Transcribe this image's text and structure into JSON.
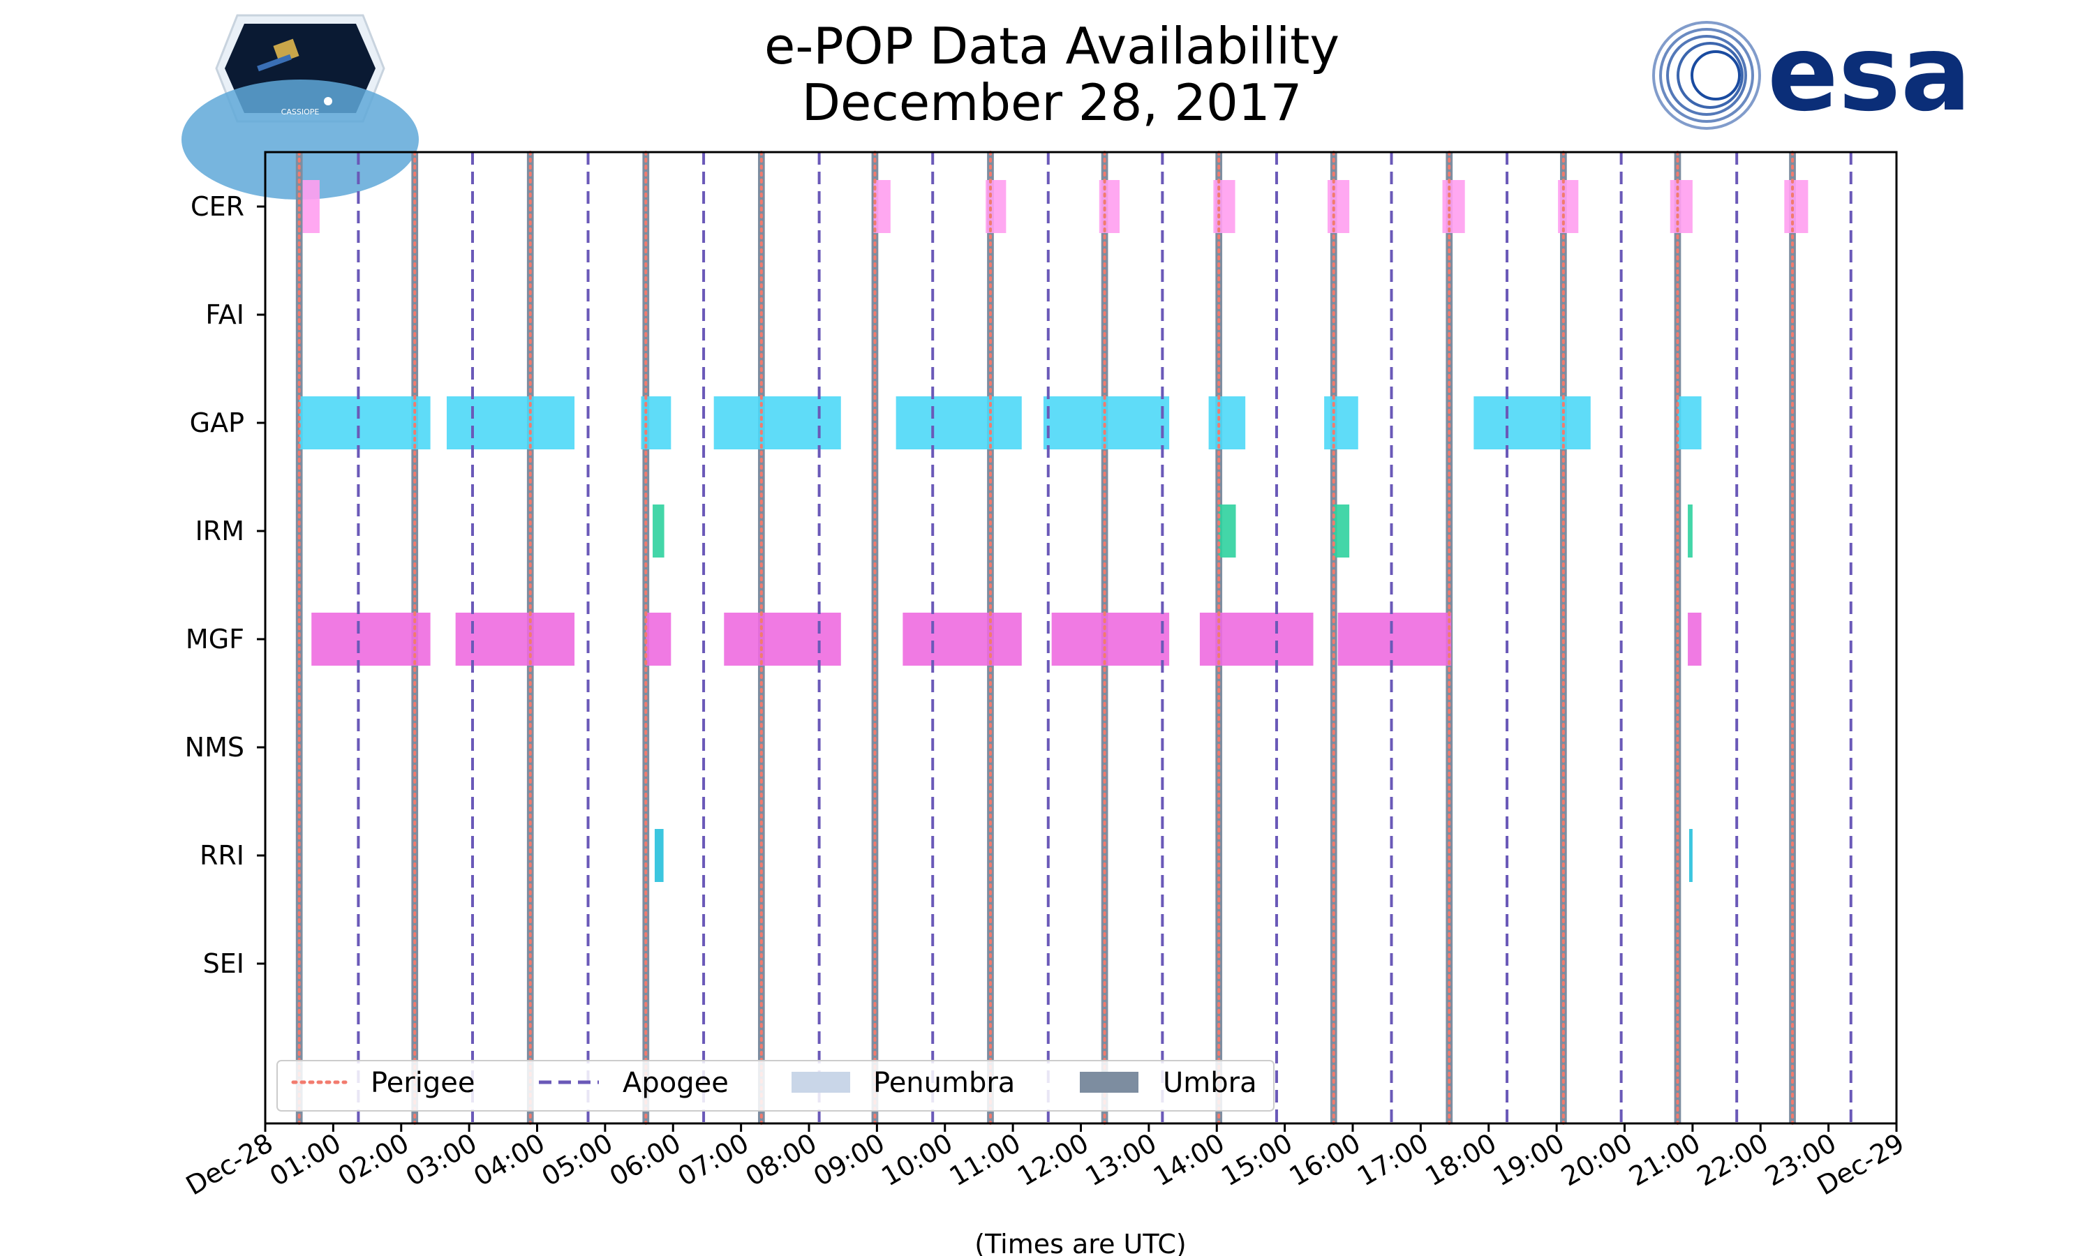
{
  "logos": {
    "left": "CASSIOPE",
    "right": "esa"
  },
  "chart_data": {
    "type": "gantt",
    "title": [
      "e-POP Data Availability",
      "December 28, 2017"
    ],
    "xlabel": "(Times are UTC)",
    "xlim_hours": [
      0,
      24
    ],
    "xticks": [
      {
        "h": 0,
        "label": "Dec-28"
      },
      {
        "h": 1,
        "label": "01:00"
      },
      {
        "h": 2,
        "label": "02:00"
      },
      {
        "h": 3,
        "label": "03:00"
      },
      {
        "h": 4,
        "label": "04:00"
      },
      {
        "h": 5,
        "label": "05:00"
      },
      {
        "h": 6,
        "label": "06:00"
      },
      {
        "h": 7,
        "label": "07:00"
      },
      {
        "h": 8,
        "label": "08:00"
      },
      {
        "h": 9,
        "label": "09:00"
      },
      {
        "h": 10,
        "label": "10:00"
      },
      {
        "h": 11,
        "label": "11:00"
      },
      {
        "h": 12,
        "label": "12:00"
      },
      {
        "h": 13,
        "label": "13:00"
      },
      {
        "h": 14,
        "label": "14:00"
      },
      {
        "h": 15,
        "label": "15:00"
      },
      {
        "h": 16,
        "label": "16:00"
      },
      {
        "h": 17,
        "label": "17:00"
      },
      {
        "h": 18,
        "label": "18:00"
      },
      {
        "h": 19,
        "label": "19:00"
      },
      {
        "h": 20,
        "label": "20:00"
      },
      {
        "h": 21,
        "label": "21:00"
      },
      {
        "h": 22,
        "label": "22:00"
      },
      {
        "h": 23,
        "label": "23:00"
      },
      {
        "h": 24,
        "label": "Dec-29"
      }
    ],
    "instruments": [
      "CER",
      "FAI",
      "GAP",
      "IRM",
      "MGF",
      "NMS",
      "RRI",
      "SEI"
    ],
    "series": [
      {
        "name": "CER",
        "color": "#ff9ef0",
        "intervals": [
          [
            0.55,
            0.8
          ],
          [
            8.95,
            9.2
          ],
          [
            10.6,
            10.9
          ],
          [
            12.27,
            12.57
          ],
          [
            13.95,
            14.27
          ],
          [
            15.63,
            15.95
          ],
          [
            17.32,
            17.65
          ],
          [
            19.02,
            19.32
          ],
          [
            20.67,
            21.0
          ],
          [
            22.35,
            22.7
          ]
        ]
      },
      {
        "name": "FAI",
        "color": "#ffd37a",
        "intervals": []
      },
      {
        "name": "GAP",
        "color": "#4ed8f7",
        "intervals": [
          [
            0.5,
            2.43
          ],
          [
            2.67,
            4.55
          ],
          [
            5.53,
            5.97
          ],
          [
            6.6,
            8.47
          ],
          [
            9.28,
            11.13
          ],
          [
            11.45,
            13.3
          ],
          [
            13.88,
            14.42
          ],
          [
            15.58,
            16.08
          ],
          [
            17.78,
            19.5
          ],
          [
            20.78,
            21.13
          ]
        ]
      },
      {
        "name": "IRM",
        "color": "#2fd19f",
        "intervals": [
          [
            5.7,
            5.87
          ],
          [
            14.03,
            14.28
          ],
          [
            15.72,
            15.95
          ],
          [
            20.93,
            21.0
          ]
        ]
      },
      {
        "name": "MGF",
        "color": "#ee6ce0",
        "intervals": [
          [
            0.68,
            2.43
          ],
          [
            2.8,
            4.55
          ],
          [
            5.6,
            5.97
          ],
          [
            6.75,
            8.47
          ],
          [
            9.38,
            11.13
          ],
          [
            11.57,
            13.3
          ],
          [
            13.75,
            15.42
          ],
          [
            15.78,
            17.45
          ],
          [
            20.93,
            21.13
          ]
        ]
      },
      {
        "name": "NMS",
        "color": "#9a8cf0",
        "intervals": []
      },
      {
        "name": "RRI",
        "color": "#27c0dc",
        "intervals": [
          [
            5.73,
            5.86
          ],
          [
            20.95,
            21.0
          ]
        ]
      },
      {
        "name": "SEI",
        "color": "#f0a070",
        "intervals": []
      }
    ],
    "perigee_hours": [
      0.5,
      2.2,
      3.9,
      5.6,
      7.3,
      8.97,
      10.67,
      12.35,
      14.03,
      15.72,
      17.42,
      19.1,
      20.78,
      22.47
    ],
    "apogee_hours": [
      1.37,
      3.05,
      4.75,
      6.45,
      8.15,
      9.82,
      11.52,
      13.2,
      14.88,
      16.57,
      18.27,
      19.95,
      21.65,
      23.33
    ],
    "umbra_width_hours": 0.1,
    "legend": {
      "position": "lower-left",
      "items": [
        {
          "label": "Perigee",
          "style": "dotted",
          "color": "#f27b6e"
        },
        {
          "label": "Apogee",
          "style": "dashed",
          "color": "#6a59b8"
        },
        {
          "label": "Penumbra",
          "style": "patch",
          "color": "#c9d6e8"
        },
        {
          "label": "Umbra",
          "style": "patch",
          "color": "#7d8da0"
        }
      ]
    },
    "colors": {
      "perigee": "#f27b6e",
      "apogee": "#6a59b8",
      "penumbra": "#c9d6e8",
      "umbra": "#7d8da0"
    }
  }
}
